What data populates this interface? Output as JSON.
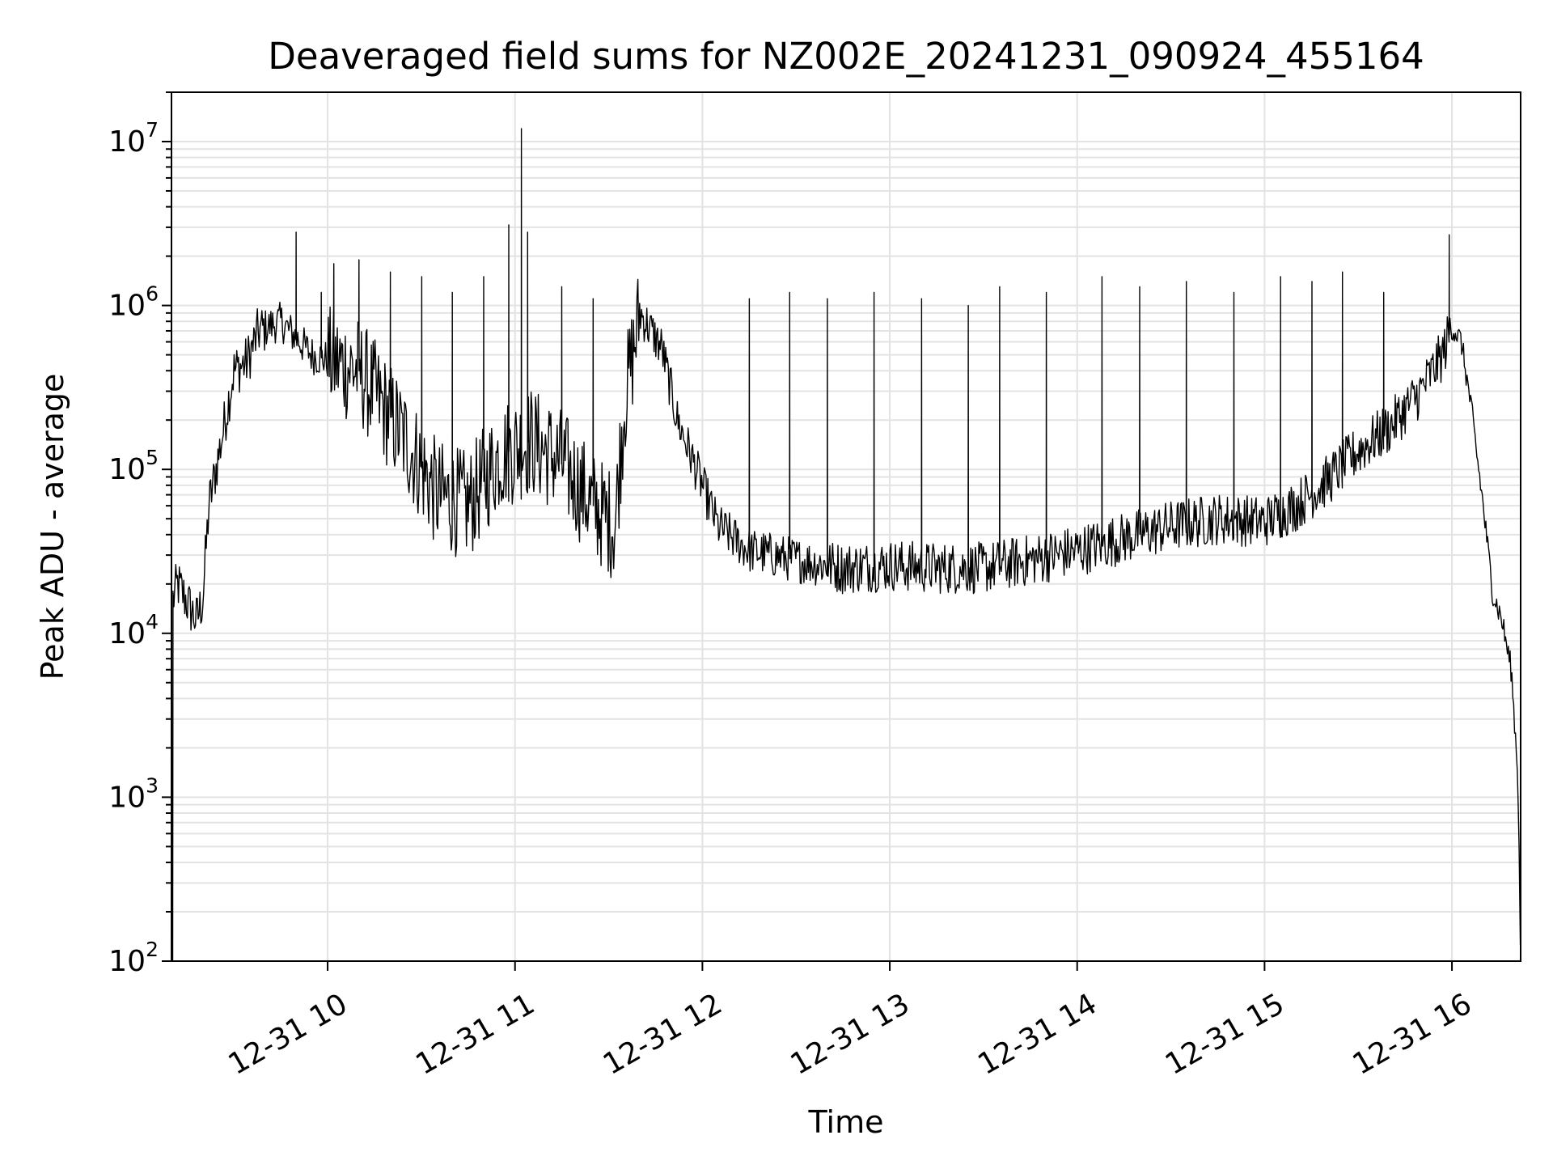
{
  "chart_data": {
    "type": "line",
    "title": "Deaveraged field sums for NZ002E_20241231_090924_455164",
    "xlabel": "Time",
    "ylabel": "Peak ADU - average",
    "yscale": "log",
    "ylim": [
      100,
      20000000
    ],
    "xlim": [
      "2024-12-31 09:10",
      "2024-12-31 16:22"
    ],
    "grid": true,
    "color": "#000000",
    "x_ticks": [
      {
        "label": "12-31 10",
        "value": "2024-12-31 10:00"
      },
      {
        "label": "12-31 11",
        "value": "2024-12-31 11:00"
      },
      {
        "label": "12-31 12",
        "value": "2024-12-31 12:00"
      },
      {
        "label": "12-31 13",
        "value": "2024-12-31 13:00"
      },
      {
        "label": "12-31 14",
        "value": "2024-12-31 14:00"
      },
      {
        "label": "12-31 15",
        "value": "2024-12-31 15:00"
      },
      {
        "label": "12-31 16",
        "value": "2024-12-31 16:00"
      }
    ],
    "y_ticks": [
      {
        "base": "10",
        "exp": "2",
        "value": 100
      },
      {
        "base": "10",
        "exp": "3",
        "value": 1000
      },
      {
        "base": "10",
        "exp": "4",
        "value": 10000
      },
      {
        "base": "10",
        "exp": "5",
        "value": 100000
      },
      {
        "base": "10",
        "exp": "6",
        "value": 1000000
      },
      {
        "base": "10",
        "exp": "7",
        "value": 10000000
      }
    ],
    "series": [
      {
        "baseline": {
          "x": [
            "09:10",
            "09:12",
            "09:18",
            "09:20",
            "09:22",
            "09:26",
            "09:30",
            "09:34",
            "09:38",
            "09:45",
            "09:55",
            "10:10",
            "10:25",
            "10:35",
            "10:45",
            "10:55",
            "11:05",
            "11:15",
            "11:25",
            "11:32",
            "11:35",
            "11:40",
            "11:47",
            "11:52",
            "12:00",
            "12:05",
            "12:15",
            "12:30",
            "12:45",
            "13:00",
            "13:15",
            "13:30",
            "13:45",
            "14:00",
            "14:15",
            "14:30",
            "14:45",
            "15:00",
            "15:10",
            "15:20",
            "15:30",
            "15:40",
            "15:50",
            "15:57",
            "16:00",
            "16:03",
            "16:06",
            "16:10",
            "16:13",
            "16:16",
            "16:19",
            "16:21",
            "16:22"
          ],
          "y": [
            15000,
            20000,
            12000,
            16000,
            60000,
            150000,
            400000,
            450000,
            700000,
            800000,
            500000,
            400000,
            150000,
            70000,
            60000,
            120000,
            150000,
            110000,
            60000,
            45000,
            250000,
            900000,
            550000,
            200000,
            80000,
            45000,
            32000,
            28000,
            25000,
            26000,
            25000,
            25000,
            28000,
            32000,
            38000,
            45000,
            50000,
            48000,
            60000,
            85000,
            130000,
            180000,
            300000,
            500000,
            750000,
            600000,
            250000,
            60000,
            18000,
            12000,
            6000,
            1500,
            200
          ]
        },
        "spikes": [
          {
            "x": "09:50",
            "y": 2800000
          },
          {
            "x": "09:58",
            "y": 1200000
          },
          {
            "x": "10:02",
            "y": 1800000
          },
          {
            "x": "10:10",
            "y": 1900000
          },
          {
            "x": "10:20",
            "y": 1600000
          },
          {
            "x": "10:30",
            "y": 1500000
          },
          {
            "x": "10:40",
            "y": 1200000
          },
          {
            "x": "10:50",
            "y": 1500000
          },
          {
            "x": "10:58",
            "y": 3100000
          },
          {
            "x": "11:02",
            "y": 12000000
          },
          {
            "x": "11:04",
            "y": 2800000
          },
          {
            "x": "11:15",
            "y": 1300000
          },
          {
            "x": "11:25",
            "y": 1100000
          },
          {
            "x": "12:15",
            "y": 1100000
          },
          {
            "x": "12:28",
            "y": 1200000
          },
          {
            "x": "12:40",
            "y": 1100000
          },
          {
            "x": "12:55",
            "y": 1200000
          },
          {
            "x": "13:10",
            "y": 1100000
          },
          {
            "x": "13:25",
            "y": 1000000
          },
          {
            "x": "13:35",
            "y": 1300000
          },
          {
            "x": "13:50",
            "y": 1200000
          },
          {
            "x": "14:08",
            "y": 1500000
          },
          {
            "x": "14:20",
            "y": 1300000
          },
          {
            "x": "14:35",
            "y": 1400000
          },
          {
            "x": "14:50",
            "y": 1200000
          },
          {
            "x": "15:05",
            "y": 1500000
          },
          {
            "x": "15:15",
            "y": 1400000
          },
          {
            "x": "15:25",
            "y": 1600000
          },
          {
            "x": "15:38",
            "y": 1200000
          },
          {
            "x": "15:59",
            "y": 2700000
          }
        ]
      }
    ]
  }
}
